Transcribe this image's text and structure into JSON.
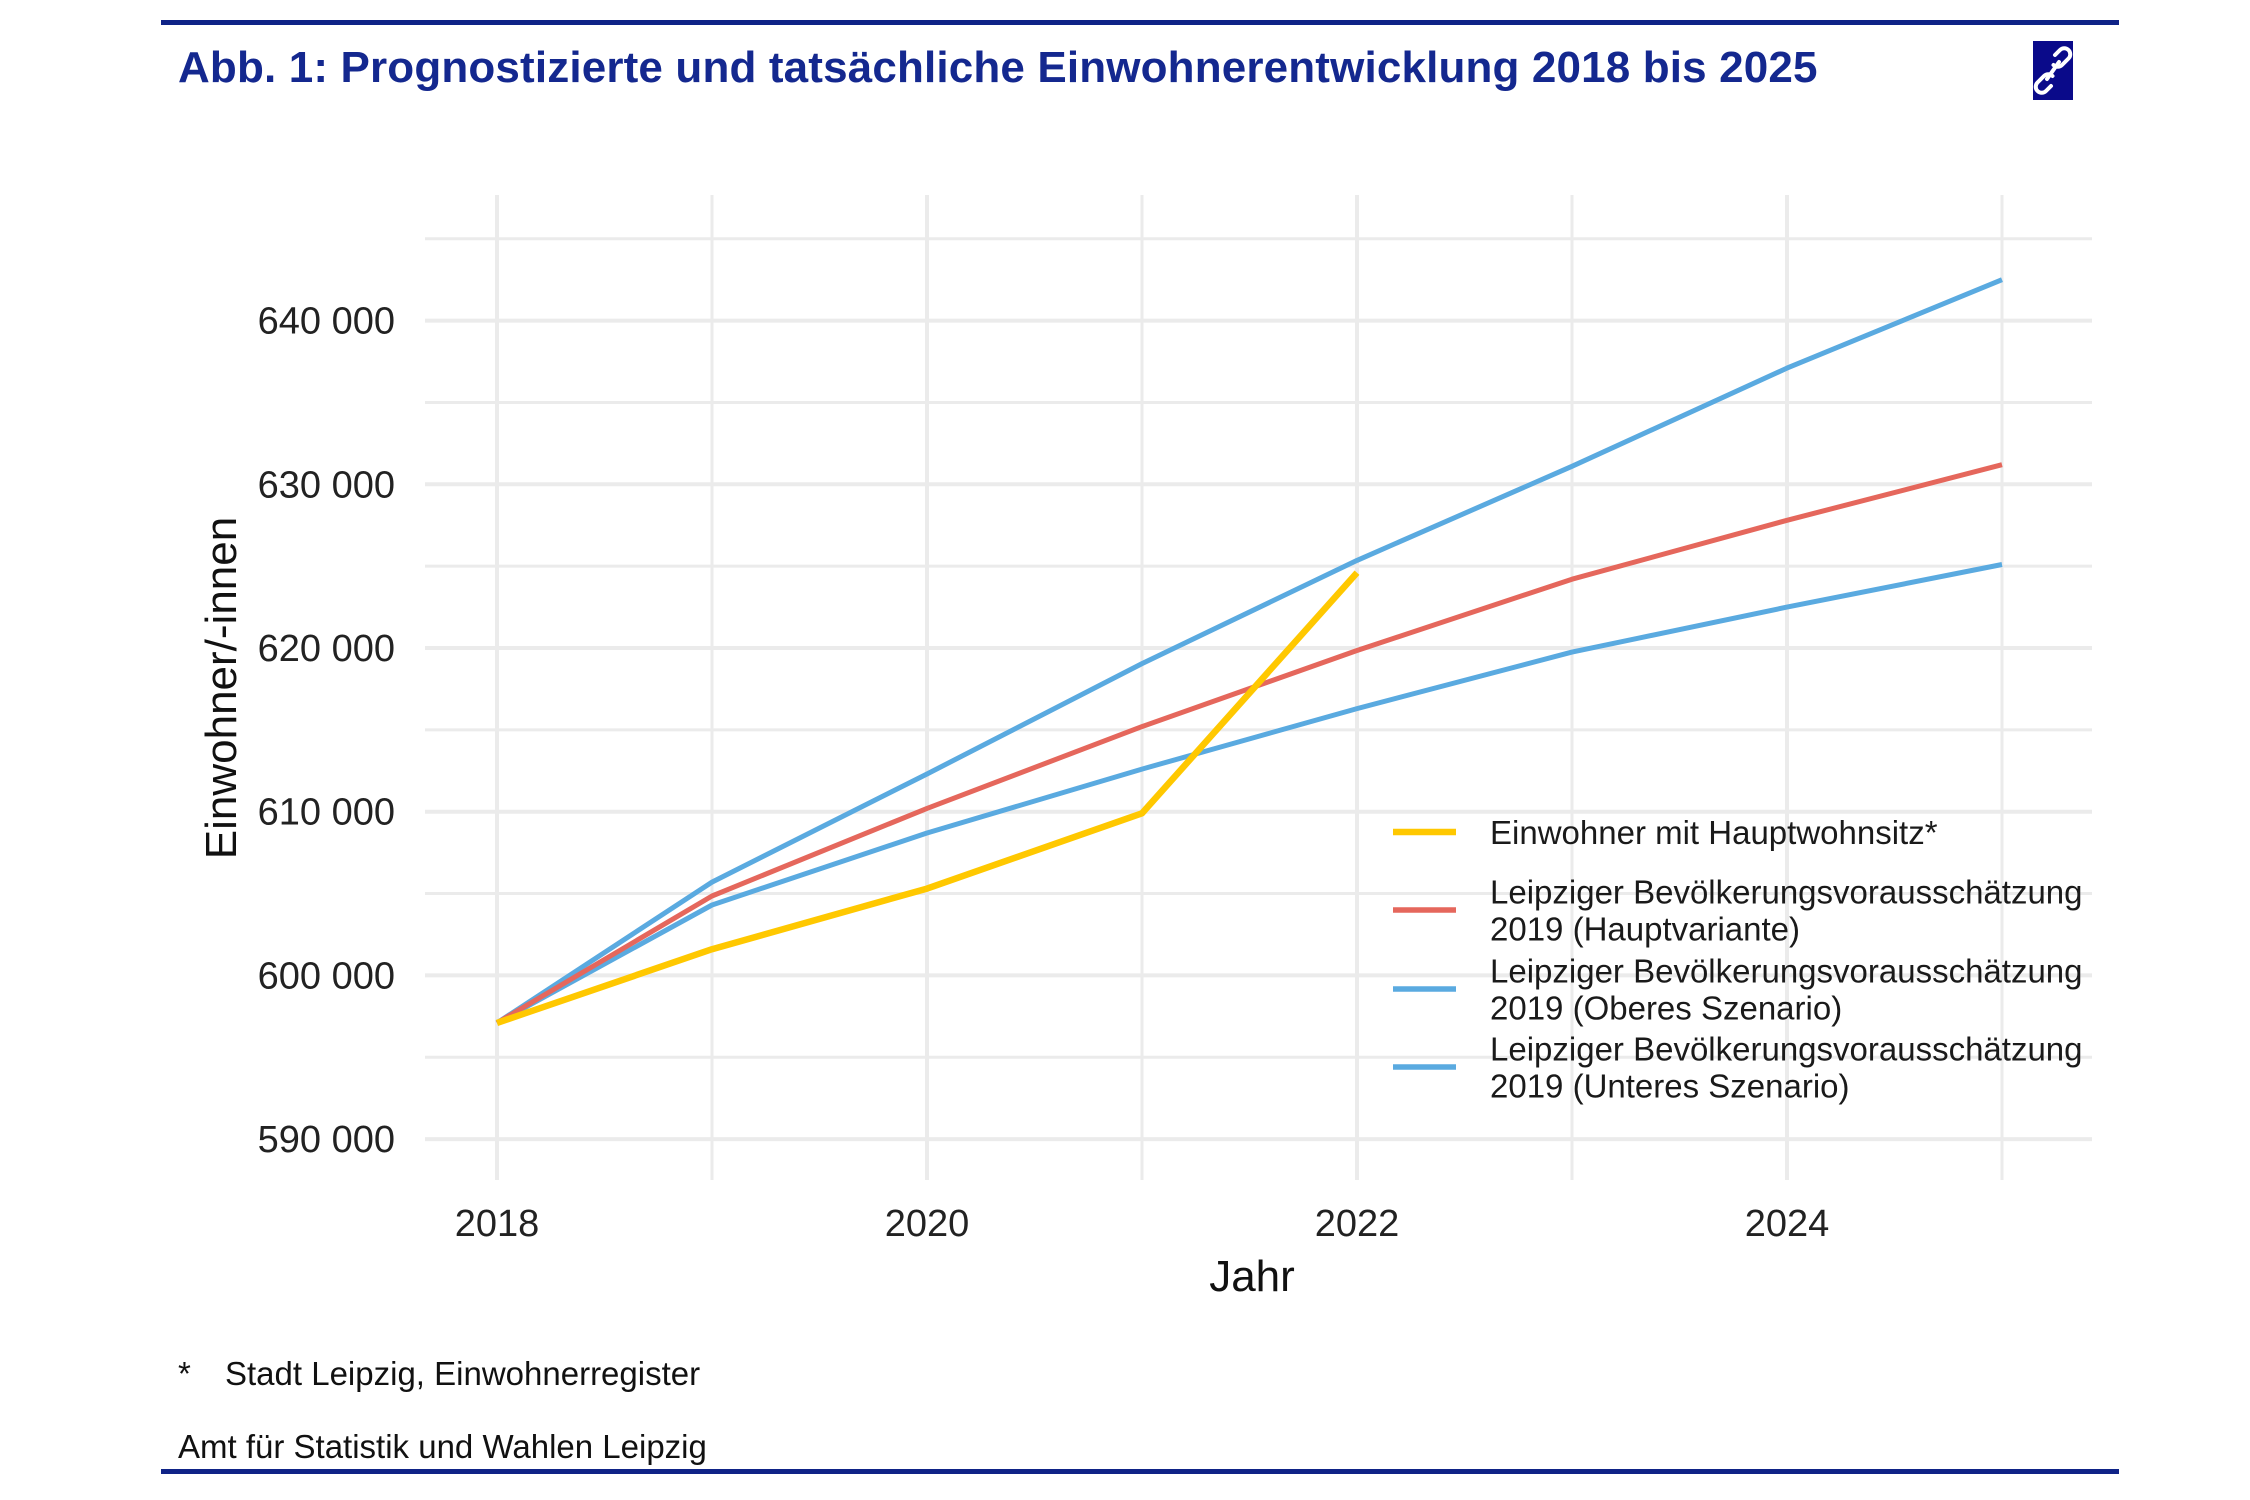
{
  "header": {
    "title": "Abb. 1: Prognostizierte und tatsächliche Einwohnerentwicklung 2018 bis 2025",
    "link_icon": "chain-link-icon"
  },
  "footer": {
    "note_marker": "*",
    "note_text": "Stadt Leipzig, Einwohnerregister",
    "source": "Amt für Statistik und Wahlen Leipzig"
  },
  "chart_data": {
    "type": "line",
    "title": "Abb. 1: Prognostizierte und tatsächliche Einwohnerentwicklung 2018 bis 2025",
    "xlabel": "Jahr",
    "ylabel": "Einwohner/-innen",
    "x": [
      2018,
      2019,
      2020,
      2021,
      2022,
      2023,
      2024,
      2025
    ],
    "xlim": [
      2017.55,
      2025.35
    ],
    "ylim": [
      588000,
      646800
    ],
    "x_ticks": [
      2018,
      2020,
      2022,
      2024
    ],
    "x_tick_labels": [
      "2018",
      "2020",
      "2022",
      "2024"
    ],
    "y_ticks": [
      590000,
      600000,
      610000,
      620000,
      630000,
      640000
    ],
    "y_tick_labels": [
      "590 000",
      "600 000",
      "610 000",
      "620 000",
      "630 000",
      "640 000"
    ],
    "grid": true,
    "legend_position": "inside-bottom-right",
    "series": [
      {
        "name": "Einwohner mit Hauptwohnsitz*",
        "color": "#FFC800",
        "values": [
          597100,
          601600,
          605300,
          609900,
          624600,
          null,
          null,
          null
        ]
      },
      {
        "name": "Leipziger Bevölkerungsvorausschätzung 2019 (Hauptvariante)",
        "legend_lines": [
          "Leipziger Bevölkerungsvorausschätzung",
          "2019 (Hauptvariante)"
        ],
        "color": "#E5675C",
        "values": [
          597100,
          604850,
          610200,
          615200,
          619850,
          624200,
          627800,
          631200
        ]
      },
      {
        "name": "Leipziger Bevölkerungsvorausschätzung 2019 (Oberes Szenario)",
        "legend_lines": [
          "Leipziger Bevölkerungsvorausschätzung",
          "2019 (Oberes Szenario)"
        ],
        "color": "#5AAAE0",
        "values": [
          597100,
          605700,
          612300,
          619050,
          625350,
          631100,
          637100,
          642500
        ]
      },
      {
        "name": "Leipziger Bevölkerungsvorausschätzung 2019 (Unteres Szenario)",
        "legend_lines": [
          "Leipziger Bevölkerungsvorausschätzung",
          "2019 (Unteres Szenario)"
        ],
        "color": "#5AAAE0",
        "values": [
          597100,
          604300,
          608700,
          612600,
          616300,
          619750,
          622500,
          625100
        ]
      }
    ],
    "legend": [
      {
        "lines": [
          "Einwohner mit Hauptwohnsitz*"
        ],
        "color": "#FFC800"
      },
      {
        "lines": [
          "Leipziger Bevölkerungsvorausschätzung",
          "2019 (Hauptvariante)"
        ],
        "color": "#E5675C"
      },
      {
        "lines": [
          "Leipziger Bevölkerungsvorausschätzung",
          "2019 (Oberes Szenario)"
        ],
        "color": "#5AAAE0"
      },
      {
        "lines": [
          "Leipziger Bevölkerungsvorausschätzung",
          "2019 (Unteres Szenario)"
        ],
        "color": "#5AAAE0"
      }
    ]
  }
}
